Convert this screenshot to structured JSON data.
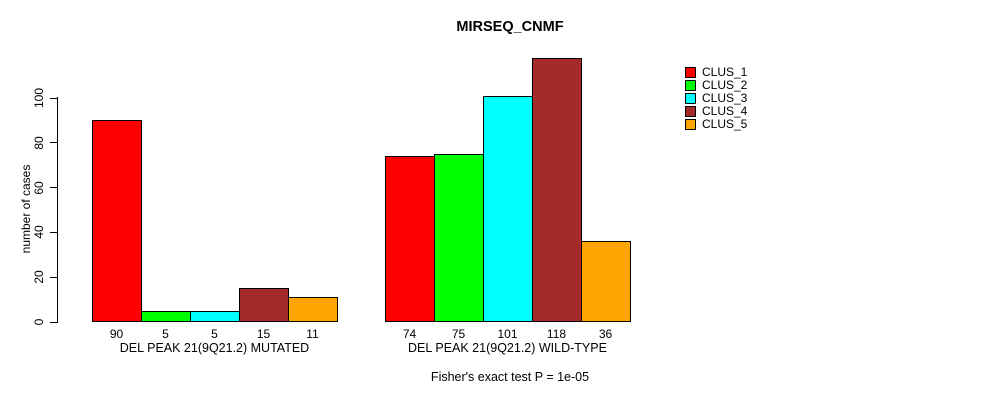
{
  "chart_data": {
    "type": "bar",
    "title": "MIRSEQ_CNMF",
    "ylabel": "number of cases",
    "xlabel": "",
    "ylim": [
      0,
      120
    ],
    "yticks": [
      0,
      20,
      40,
      60,
      80,
      100
    ],
    "grid": false,
    "legend_position": "right",
    "series": [
      {
        "name": "CLUS_1",
        "color": "#FF0000"
      },
      {
        "name": "CLUS_2",
        "color": "#00FF00"
      },
      {
        "name": "CLUS_3",
        "color": "#00FFFF"
      },
      {
        "name": "CLUS_4",
        "color": "#A52A2A"
      },
      {
        "name": "CLUS_5",
        "color": "#FFA500"
      }
    ],
    "groups": [
      {
        "label": "DEL PEAK 21(9Q21.2) MUTATED",
        "values": [
          90,
          5,
          5,
          15,
          11
        ],
        "bar_value_labels": [
          "90",
          "5",
          "5",
          "15",
          "11"
        ]
      },
      {
        "label": "DEL PEAK 21(9Q21.2) WILD-TYPE",
        "values": [
          74,
          75,
          101,
          118,
          36
        ],
        "bar_value_labels": [
          "74",
          "75",
          "101",
          "118",
          "36"
        ]
      }
    ],
    "footnote": "Fisher's exact test P = 1e-05"
  }
}
